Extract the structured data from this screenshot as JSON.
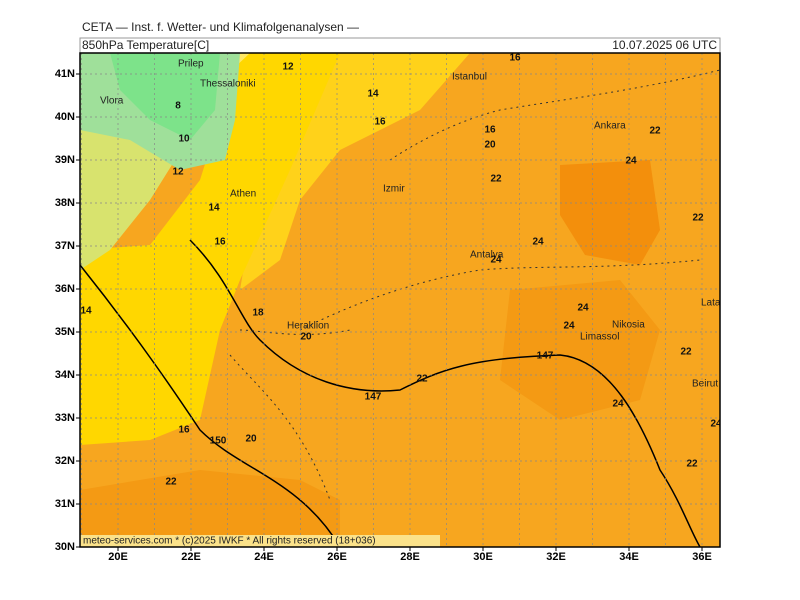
{
  "header": {
    "title": "CETA — Inst. f. Wetter- und Klimafolgenanalysen —",
    "subtitle": "850hPa Temperature[C]",
    "datetime": "10.07.2025 06 UTC"
  },
  "map": {
    "lat_labels": [
      "41N",
      "40N",
      "39N",
      "38N",
      "37N",
      "36N",
      "35N",
      "34N",
      "33N",
      "32N",
      "31N",
      "30N"
    ],
    "lon_labels": [
      "20E",
      "22E",
      "24E",
      "26E",
      "28E",
      "30E",
      "32E",
      "34E",
      "36E"
    ],
    "cities": [
      "Prilep",
      "Vlora",
      "Thessaloniki",
      "Athen",
      "Izmir",
      "Istanbul",
      "Ankara",
      "Antalya",
      "Heraklion",
      "Nikosia",
      "Limassol",
      "Latakia",
      "Beirut"
    ],
    "contour_labels": [
      "12",
      "14",
      "16",
      "8",
      "10",
      "12",
      "16",
      "16",
      "20",
      "14",
      "16",
      "22",
      "22",
      "24",
      "22",
      "24",
      "24",
      "24",
      "24",
      "18",
      "20",
      "22",
      "22",
      "147",
      "147",
      "24",
      "16",
      "150",
      "20",
      "22",
      "22",
      "24",
      "14"
    ],
    "footer": "meteo-services.com * (c)2025 IWKF * All rights reserved (18+036)"
  }
}
